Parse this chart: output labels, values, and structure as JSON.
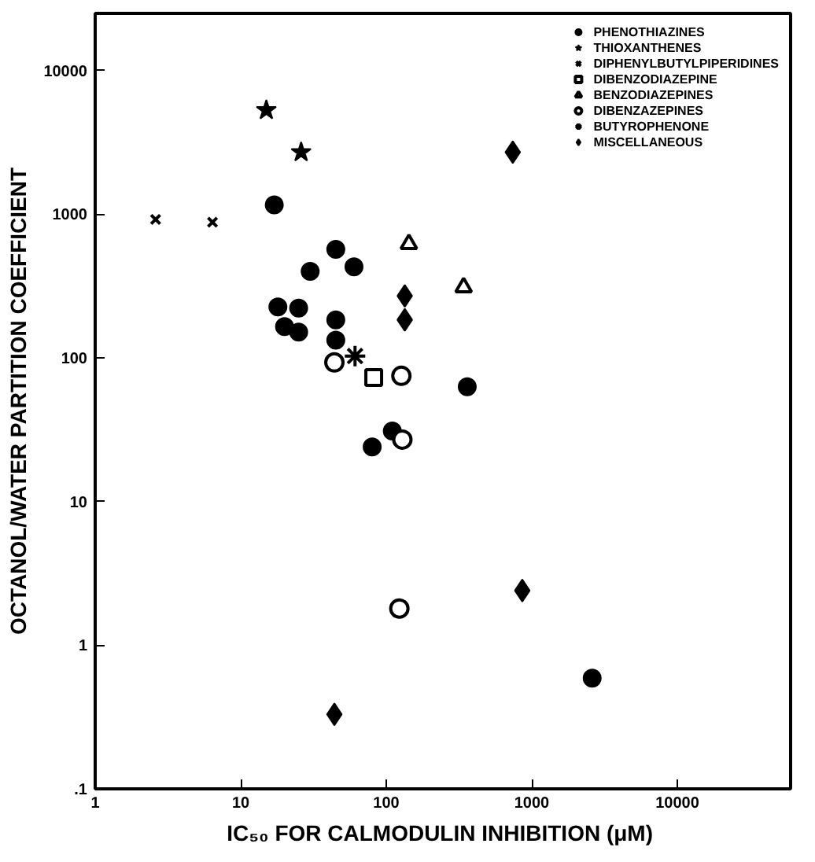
{
  "chart_data": {
    "type": "scatter",
    "xlabel": "IC₅₀ FOR CALMODULIN INHIBITION  (μM)",
    "ylabel": "OCTANOL/WATER PARTITION COEFFICIENT",
    "log": "xy",
    "xlim": [
      1,
      60000
    ],
    "ylim": [
      0.1,
      25000
    ],
    "xticks": [
      1,
      10,
      100,
      1000,
      10000
    ],
    "yticks": [
      {
        "value": 0.1,
        "label": ".1"
      },
      1,
      10,
      100,
      1000,
      10000
    ],
    "grid": false,
    "legend": "top right",
    "series": [
      {
        "name": "PHENOTHIAZINES",
        "color": "#000000",
        "marker": "circle",
        "x": [
          17,
          45,
          30,
          60,
          18,
          25,
          20,
          25,
          45,
          45,
          360,
          110,
          80,
          2600
        ],
        "values": [
          1160,
          570,
          400,
          430,
          226,
          222,
          165,
          151,
          184,
          133,
          63,
          31,
          24,
          0.59
        ]
      },
      {
        "name": "THIOXANTHENES",
        "color": "#000000",
        "marker": "star",
        "x": [
          15,
          26
        ],
        "values": [
          5300,
          2700
        ]
      },
      {
        "name": "DIPHENYLBUTYLPIPERIDINES",
        "color": "#000000",
        "marker": "x",
        "x": [
          2.6,
          6.4
        ],
        "values": [
          920,
          880
        ]
      },
      {
        "name": "DIBENZODIAZEPINE",
        "color": "#000000",
        "marker": "square_open",
        "x": [
          82
        ],
        "values": [
          73
        ]
      },
      {
        "name": "BENZODIAZEPINES",
        "color": "#000000",
        "marker": "triangle_open",
        "x": [
          143,
          340
        ],
        "values": [
          620,
          310
        ]
      },
      {
        "name": "DIBENZAZEPINES",
        "color": "#000000",
        "marker": "circle_open",
        "x": [
          44,
          127,
          129,
          123
        ],
        "values": [
          93,
          75,
          27,
          1.8
        ]
      },
      {
        "name": "BUTYROPHENONE",
        "color": "#000000",
        "marker": "cross",
        "x": [
          61
        ],
        "values": [
          103
        ]
      },
      {
        "name": "MISCELLANEOUS",
        "color": "#000000",
        "marker": "diamond",
        "x": [
          134,
          134,
          740,
          860,
          44
        ],
        "values": [
          270,
          184,
          2700,
          2.4,
          0.33
        ]
      }
    ]
  }
}
